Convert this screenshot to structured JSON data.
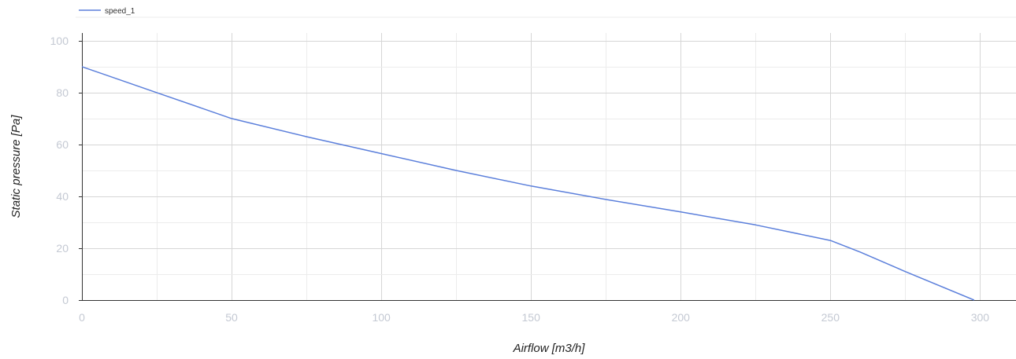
{
  "chart_data": {
    "type": "line",
    "title": "",
    "xlabel": "Airflow [m3/h]",
    "ylabel": "Static pressure [Pa]",
    "xlim": [
      0,
      312
    ],
    "ylim": [
      0,
      103
    ],
    "x_ticks": [
      "0",
      "50",
      "100",
      "150",
      "200",
      "250",
      "300"
    ],
    "y_ticks": [
      "0",
      "20",
      "40",
      "60",
      "80",
      "100"
    ],
    "grid": true,
    "legend_position": "top-left",
    "series": [
      {
        "name": "speed_1",
        "color": "#5b7fdb",
        "x": [
          0,
          25,
          50,
          75,
          100,
          125,
          150,
          175,
          200,
          225,
          250,
          260,
          275,
          298
        ],
        "y": [
          90,
          80,
          70,
          63,
          56.5,
          50,
          44,
          38.8,
          34,
          29,
          23,
          18.5,
          11,
          0
        ]
      }
    ]
  }
}
